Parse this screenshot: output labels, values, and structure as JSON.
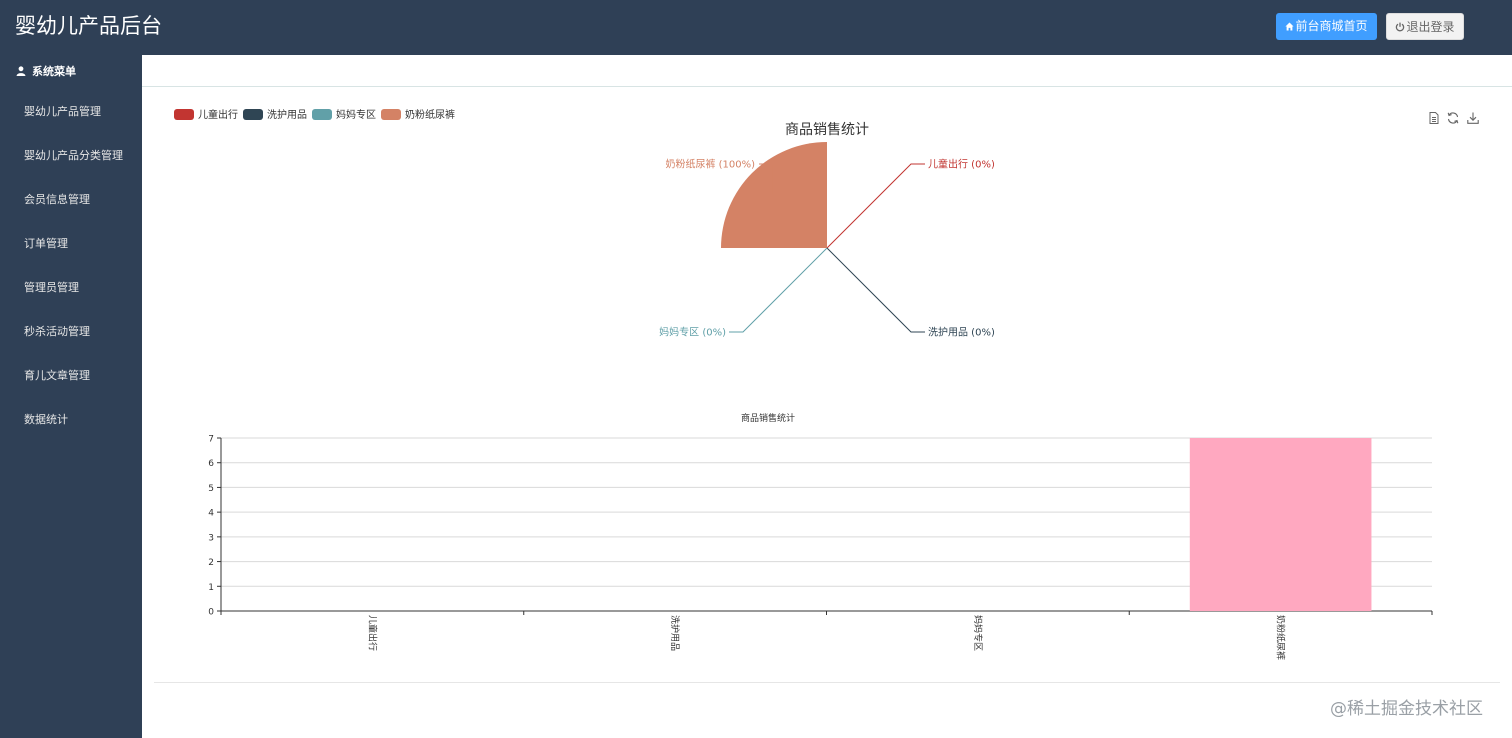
{
  "header": {
    "title": "婴幼儿产品后台",
    "home_button": "前台商城首页",
    "logout_button": "退出登录"
  },
  "sidebar": {
    "heading": "系统菜单",
    "items": [
      {
        "label": "婴幼儿产品管理"
      },
      {
        "label": "婴幼儿产品分类管理"
      },
      {
        "label": "会员信息管理"
      },
      {
        "label": "订单管理"
      },
      {
        "label": "管理员管理"
      },
      {
        "label": "秒杀活动管理"
      },
      {
        "label": "育儿文章管理"
      },
      {
        "label": "数据统计"
      }
    ]
  },
  "legend": [
    {
      "label": "儿童出行",
      "color": "#c23531"
    },
    {
      "label": "洗护用品",
      "color": "#2f4554"
    },
    {
      "label": "妈妈专区",
      "color": "#61a0a8"
    },
    {
      "label": "奶粉纸尿裤",
      "color": "#d48265"
    }
  ],
  "toolbox": [
    "data-view-icon",
    "refresh-icon",
    "download-icon"
  ],
  "chart_data": [
    {
      "type": "pie",
      "title": "商品销售统计",
      "roseType": "area",
      "slices": [
        {
          "name": "儿童出行",
          "value": 0,
          "label": "儿童出行 (0%)",
          "color": "#c23531"
        },
        {
          "name": "洗护用品",
          "value": 0,
          "label": "洗护用品 (0%)",
          "color": "#2f4554"
        },
        {
          "name": "妈妈专区",
          "value": 0,
          "label": "妈妈专区 (0%)",
          "color": "#61a0a8"
        },
        {
          "name": "奶粉纸尿裤",
          "value": 7,
          "label": "奶粉纸尿裤 (100%)",
          "color": "#d48265"
        }
      ]
    },
    {
      "type": "bar",
      "title": "商品销售统计",
      "categories": [
        "儿童出行",
        "洗护用品",
        "妈妈专区",
        "奶粉纸尿裤"
      ],
      "values": [
        0,
        0,
        0,
        7
      ],
      "ylim": [
        0,
        7
      ],
      "yticks": [
        0,
        1,
        2,
        3,
        4,
        5,
        6,
        7
      ],
      "bar_color": "#ffa8c0",
      "grid": true
    }
  ],
  "watermark": "@稀土掘金技术社区"
}
